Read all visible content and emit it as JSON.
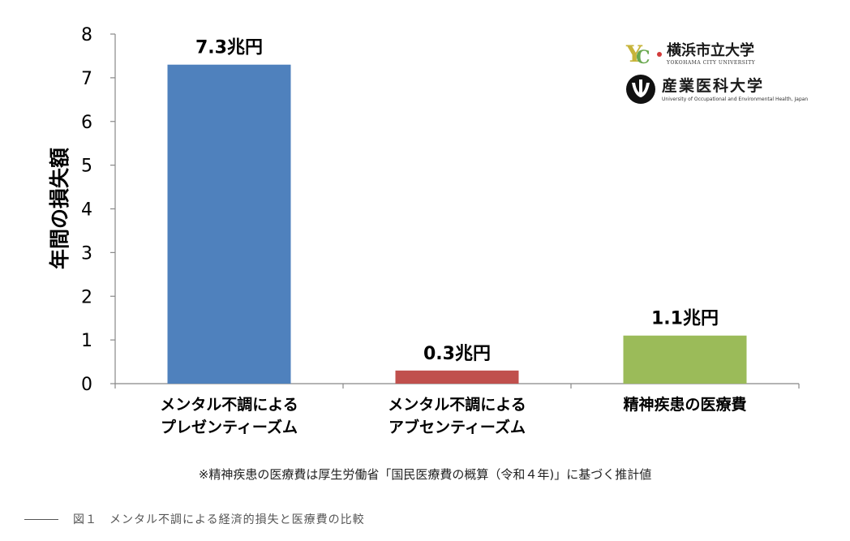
{
  "chart_data": {
    "type": "bar",
    "title": "",
    "xlabel": "",
    "ylabel": "年間の損失額",
    "ylim": [
      0,
      8
    ],
    "yticks": [
      0,
      1,
      2,
      3,
      4,
      5,
      6,
      7,
      8
    ],
    "grid": false,
    "categories": [
      [
        "メンタル不調による",
        "プレゼンティーズム"
      ],
      [
        "メンタル不調による",
        "アブセンティーズム"
      ],
      [
        "精神疾患の医療費"
      ]
    ],
    "values": [
      7.3,
      0.3,
      1.1
    ],
    "data_labels": [
      "7.3兆円",
      "0.3兆円",
      "1.1兆円"
    ],
    "colors": [
      "#4f81bd",
      "#c0504d",
      "#9bbb59"
    ]
  },
  "footnote": "※精神疾患の医療費は厚生労働省「国民医療費の概算（令和４年)」に基づく推計値",
  "logos": {
    "ycu": {
      "mark_y": "Y",
      "mark_c": "C",
      "name": "横浜市立大学",
      "sub": "YOKOHAMA CITY UNIVERSITY"
    },
    "uoeh": {
      "name": "産業医科大学",
      "sub": "University of Occupational and Environmental Health, Japan"
    }
  },
  "caption": "図１　メンタル不調による経済的損失と医療費の比較"
}
